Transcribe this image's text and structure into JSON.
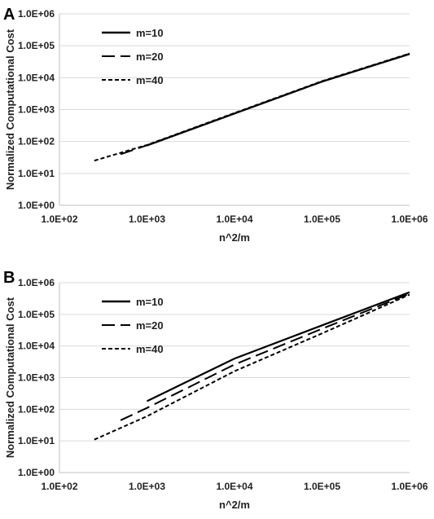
{
  "chart_data": [
    {
      "type": "line",
      "panel_label": "A",
      "xlabel": "n^2/m",
      "ylabel": "Normalized Computational Cost",
      "xscale": "log",
      "yscale": "log",
      "xlim": [
        100,
        1000000
      ],
      "ylim": [
        1,
        1000000
      ],
      "xticks": [
        "1.0E+02",
        "1.0E+03",
        "1.0E+04",
        "1.0E+05",
        "1.0E+06"
      ],
      "yticks": [
        "1.0E+00",
        "1.0E+01",
        "1.0E+02",
        "1.0E+03",
        "1.0E+04",
        "1.0E+05",
        "1.0E+06"
      ],
      "grid": true,
      "legend_position": "top-left",
      "series": [
        {
          "name": "m=10",
          "style": "solid",
          "points": [
            [
              1000,
              75
            ],
            [
              10000,
              750
            ],
            [
              100000,
              7500
            ],
            [
              1000000,
              55000
            ]
          ]
        },
        {
          "name": "m=20",
          "style": "dashed",
          "points": [
            [
              500,
              40
            ],
            [
              1000,
              76
            ],
            [
              10000,
              760
            ],
            [
              100000,
              7600
            ],
            [
              1000000,
              56000
            ]
          ]
        },
        {
          "name": "m=40",
          "style": "dotted",
          "points": [
            [
              250,
              25
            ],
            [
              1000,
              78
            ],
            [
              10000,
              780
            ],
            [
              100000,
              7800
            ],
            [
              1000000,
              57000
            ]
          ]
        }
      ]
    },
    {
      "type": "line",
      "panel_label": "B",
      "xlabel": "n^2/m",
      "ylabel": "Normalized Computational Cost",
      "xscale": "log",
      "yscale": "log",
      "xlim": [
        100,
        1000000
      ],
      "ylim": [
        1,
        1000000
      ],
      "xticks": [
        "1.0E+02",
        "1.0E+03",
        "1.0E+04",
        "1.0E+05",
        "1.0E+06"
      ],
      "yticks": [
        "1.0E+00",
        "1.0E+01",
        "1.0E+02",
        "1.0E+03",
        "1.0E+04",
        "1.0E+05",
        "1.0E+06"
      ],
      "grid": true,
      "legend_position": "top-left",
      "series": [
        {
          "name": "m=10",
          "style": "solid",
          "points": [
            [
              1000,
              180
            ],
            [
              10000,
              4000
            ],
            [
              100000,
              45000
            ],
            [
              1000000,
              500000
            ]
          ]
        },
        {
          "name": "m=20",
          "style": "dashed",
          "points": [
            [
              500,
              45
            ],
            [
              1000,
              110
            ],
            [
              10000,
              2600
            ],
            [
              100000,
              35000
            ],
            [
              1000000,
              450000
            ]
          ]
        },
        {
          "name": "m=40",
          "style": "dotted",
          "points": [
            [
              250,
              11
            ],
            [
              1000,
              60
            ],
            [
              10000,
              1600
            ],
            [
              100000,
              25000
            ],
            [
              1000000,
              420000
            ]
          ]
        }
      ]
    }
  ]
}
